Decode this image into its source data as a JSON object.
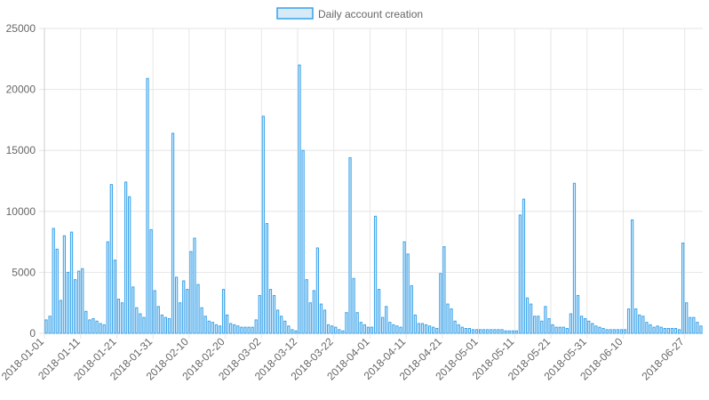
{
  "chart_data": {
    "type": "bar",
    "title": "",
    "xlabel": "",
    "ylabel": "",
    "ylim": [
      0,
      25000
    ],
    "yticks": [
      0,
      5000,
      10000,
      15000,
      20000,
      25000
    ],
    "grid": true,
    "legend_position": "top-center",
    "colors": {
      "bar_fill": "#d6eaf8",
      "bar_stroke": "#36a2eb",
      "grid": "#e6e6e6",
      "text": "#666666"
    },
    "x_tick_labels": [
      "2018-01-01",
      "2018-01-11",
      "2018-01-21",
      "2018-01-31",
      "2018-02-10",
      "2018-02-20",
      "2018-03-02",
      "2018-03-12",
      "2018-03-22",
      "2018-04-01",
      "2018-04-11",
      "2018-04-21",
      "2018-05-01",
      "2018-05-11",
      "2018-05-21",
      "2018-05-31",
      "2018-06-10",
      "2018-06-27"
    ],
    "series": [
      {
        "name": "Daily account creation",
        "start_date": "2018-01-01",
        "values": [
          1100,
          1400,
          8600,
          6900,
          2700,
          8000,
          5000,
          8300,
          4400,
          5100,
          5300,
          1800,
          1100,
          1200,
          1000,
          800,
          700,
          7500,
          12200,
          6000,
          2800,
          2500,
          12400,
          11200,
          3800,
          2100,
          1600,
          1300,
          20900,
          8500,
          3500,
          2200,
          1500,
          1300,
          1200,
          16400,
          4600,
          2500,
          4300,
          3600,
          6700,
          7800,
          4000,
          2100,
          1400,
          1000,
          900,
          700,
          600,
          3600,
          1500,
          800,
          700,
          600,
          500,
          500,
          500,
          500,
          1100,
          3100,
          17800,
          9000,
          3600,
          3100,
          1900,
          1400,
          1000,
          600,
          300,
          200,
          22000,
          15000,
          4400,
          2500,
          3500,
          7000,
          2400,
          1900,
          700,
          600,
          500,
          300,
          200,
          1700,
          14400,
          4500,
          1700,
          900,
          700,
          500,
          500,
          9600,
          3600,
          1300,
          2200,
          900,
          700,
          600,
          500,
          7500,
          6500,
          3900,
          1500,
          800,
          800,
          700,
          600,
          500,
          400,
          4900,
          7100,
          2400,
          2000,
          1000,
          700,
          500,
          400,
          400,
          300,
          300,
          300,
          300,
          300,
          300,
          300,
          300,
          300,
          200,
          200,
          200,
          200,
          9700,
          11000,
          2900,
          2400,
          1400,
          1400,
          1000,
          2200,
          1200,
          700,
          500,
          500,
          500,
          400,
          1600,
          12300,
          3100,
          1400,
          1200,
          1000,
          800,
          600,
          500,
          400,
          300,
          300,
          300,
          300,
          300,
          300,
          2000,
          9300,
          2000,
          1500,
          1400,
          900,
          700,
          500,
          600,
          500,
          400,
          400,
          400,
          400,
          300,
          7400,
          2500,
          1300,
          1300,
          900,
          600
        ]
      }
    ]
  }
}
